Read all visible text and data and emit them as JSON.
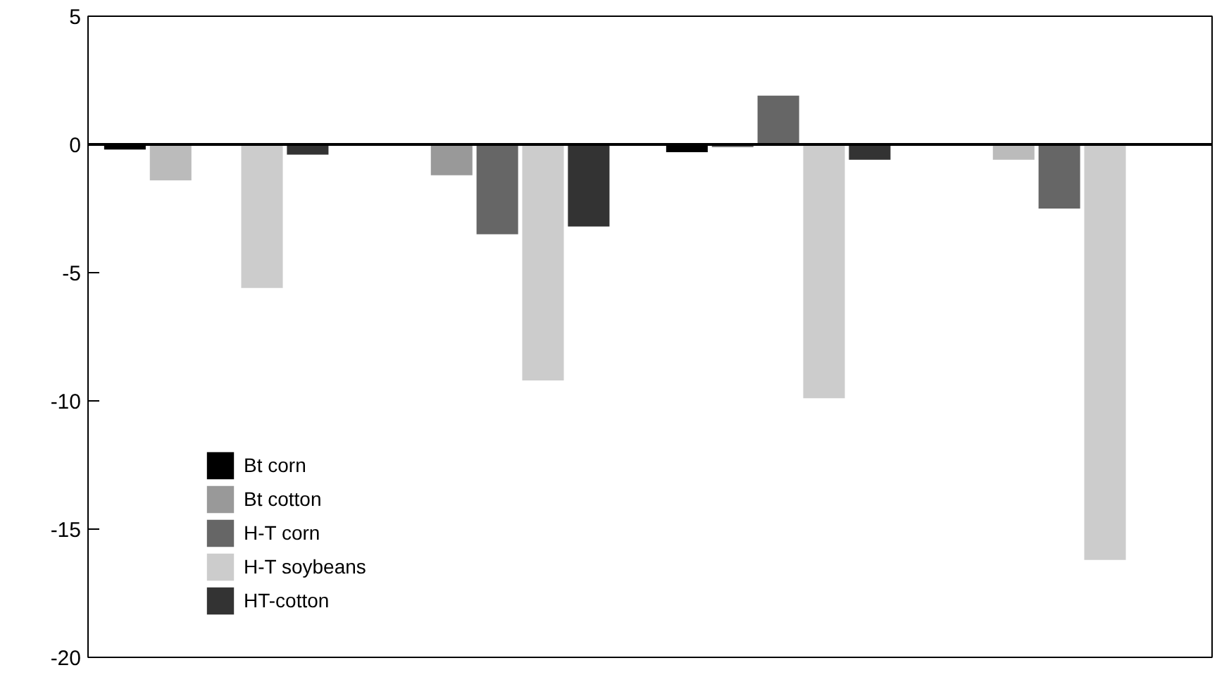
{
  "chart_data": {
    "type": "bar",
    "categories": [
      null,
      null,
      null,
      null
    ],
    "series": [
      {
        "name": "Bt corn",
        "color": "#000000",
        "values": [
          -0.2,
          null,
          -0.3,
          null
        ]
      },
      {
        "name": "Bt cotton",
        "color": "#999999",
        "colors": [
          "#bbbbbb",
          "#999999",
          "#666666",
          "#bbbbbb"
        ],
        "values": [
          -1.4,
          -1.2,
          -0.1,
          -0.6
        ]
      },
      {
        "name": "H-T corn",
        "color": "#666666",
        "values": [
          null,
          -3.5,
          1.9,
          -2.5
        ]
      },
      {
        "name": "H-T soybeans",
        "color": "#cccccc",
        "values": [
          -5.6,
          -9.2,
          -9.9,
          -16.2
        ]
      },
      {
        "name": "HT-cotton",
        "color": "#333333",
        "values": [
          -0.4,
          -3.2,
          -0.6,
          null
        ]
      }
    ],
    "ylim": [
      -20,
      5
    ],
    "yticks": [
      -20,
      -15,
      -10,
      -5,
      0,
      5
    ],
    "ref_lines": [
      {
        "axis": "y",
        "value": 0,
        "color": "#000000"
      }
    ],
    "legend": "bottom left",
    "tick_labels": "y",
    "grid": false
  }
}
